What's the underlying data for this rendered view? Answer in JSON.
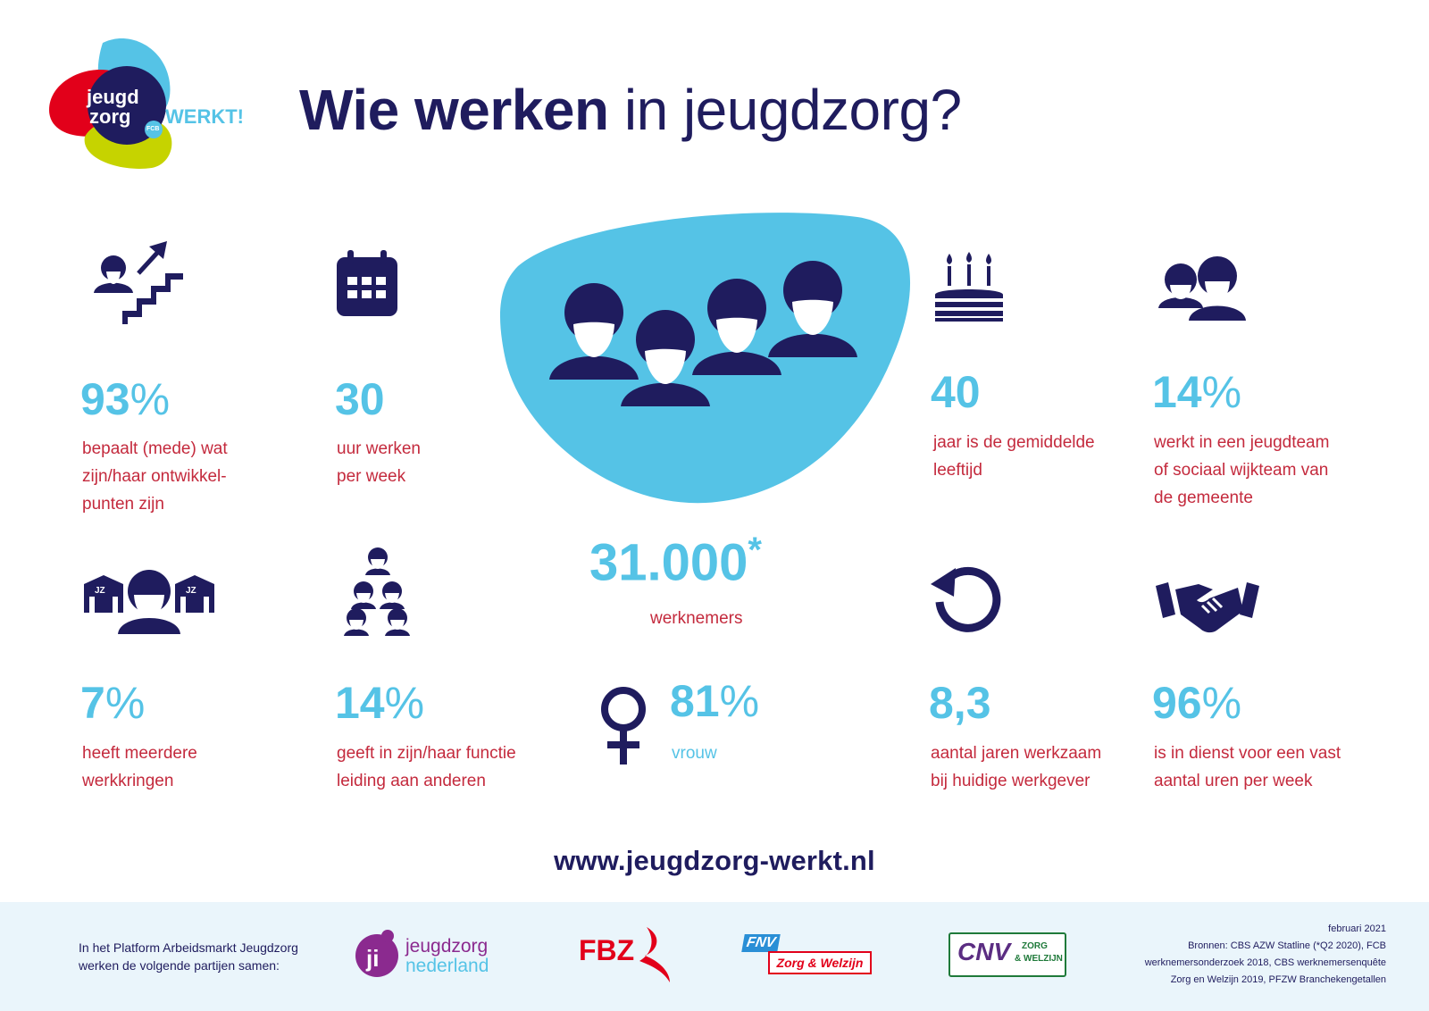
{
  "brand": {
    "logo_line1": "jeugd",
    "logo_line2": "zorg",
    "logo_werkt": "WERKT!",
    "logo_badge": "FCB"
  },
  "title": {
    "bold": "Wie werken",
    "light": "in jeugdzorg?"
  },
  "stats": {
    "development": {
      "value": "93",
      "symbol": "%",
      "desc_lines": [
        "bepaalt (mede) wat",
        "zijn/haar ontwikkel-",
        "punten zijn"
      ],
      "icon": "career-growth-icon"
    },
    "hours": {
      "value": "30",
      "desc_lines": [
        "uur werken",
        "per week"
      ],
      "icon": "calendar-icon"
    },
    "employees": {
      "value": "31.000",
      "mark": "*",
      "desc": "werknemers",
      "icon": "group-people-icon"
    },
    "age": {
      "value": "40",
      "desc_lines": [
        "jaar is de gemiddelde",
        "leeftijd"
      ],
      "icon": "birthday-cake-icon"
    },
    "team": {
      "value": "14",
      "symbol": "%",
      "desc_lines": [
        "werkt in een jeugdteam",
        "of sociaal wijkteam van",
        "de gemeente"
      ],
      "icon": "team-people-icon"
    },
    "multiple_jobs": {
      "value": "7",
      "symbol": "%",
      "desc_lines": [
        "heeft meerdere",
        "werkkringen"
      ],
      "icon": "multiple-workplaces-icon"
    },
    "leadership": {
      "value": "14",
      "symbol": "%",
      "desc_lines": [
        "geeft in zijn/haar functie",
        "leiding aan anderen"
      ],
      "icon": "hierarchy-icon"
    },
    "women": {
      "value": "81",
      "symbol": "%",
      "desc": "vrouw",
      "icon": "female-symbol-icon"
    },
    "tenure": {
      "value": "8,3",
      "desc_lines": [
        "aantal jaren werkzaam",
        "bij huidige werkgever"
      ],
      "icon": "cycle-arrow-icon"
    },
    "fixed_hours": {
      "value": "96",
      "symbol": "%",
      "desc_lines": [
        "is in dienst voor een vast",
        "aantal uren per week"
      ],
      "icon": "handshake-icon"
    }
  },
  "icon_labels": {
    "jz1": "JZ",
    "jz2": "JZ"
  },
  "url": "www.jeugdzorg-werkt.nl",
  "footer": {
    "partners_text_lines": [
      "In het Platform Arbeidsmarkt Jeugdzorg",
      "werken de volgende partijen samen:"
    ],
    "partners": {
      "jn": {
        "line1": "jeugdzorg",
        "line2": "nederland"
      },
      "fbz": {
        "text": "FBZ"
      },
      "fnv": {
        "brand": "FNV",
        "text": "Zorg & Welzijn"
      },
      "cnv": {
        "brand": "CNV",
        "line1": "ZORG",
        "line2": "& WELZIJN"
      }
    },
    "sources_lines": [
      "februari 2021",
      "Bronnen: CBS AZW Statline (*Q2 2020), FCB",
      "werknemersonderzoek 2018, CBS werknemersenquête",
      "Zorg en Welzijn 2019, PFZW Branchekengetallen"
    ]
  },
  "colors": {
    "navy": "#1f1c5e",
    "cyan": "#55c3e6",
    "red": "#c42a3d",
    "lime": "#c6d300",
    "logo_red": "#e2001a",
    "footer_bg": "#eaf5fb"
  }
}
